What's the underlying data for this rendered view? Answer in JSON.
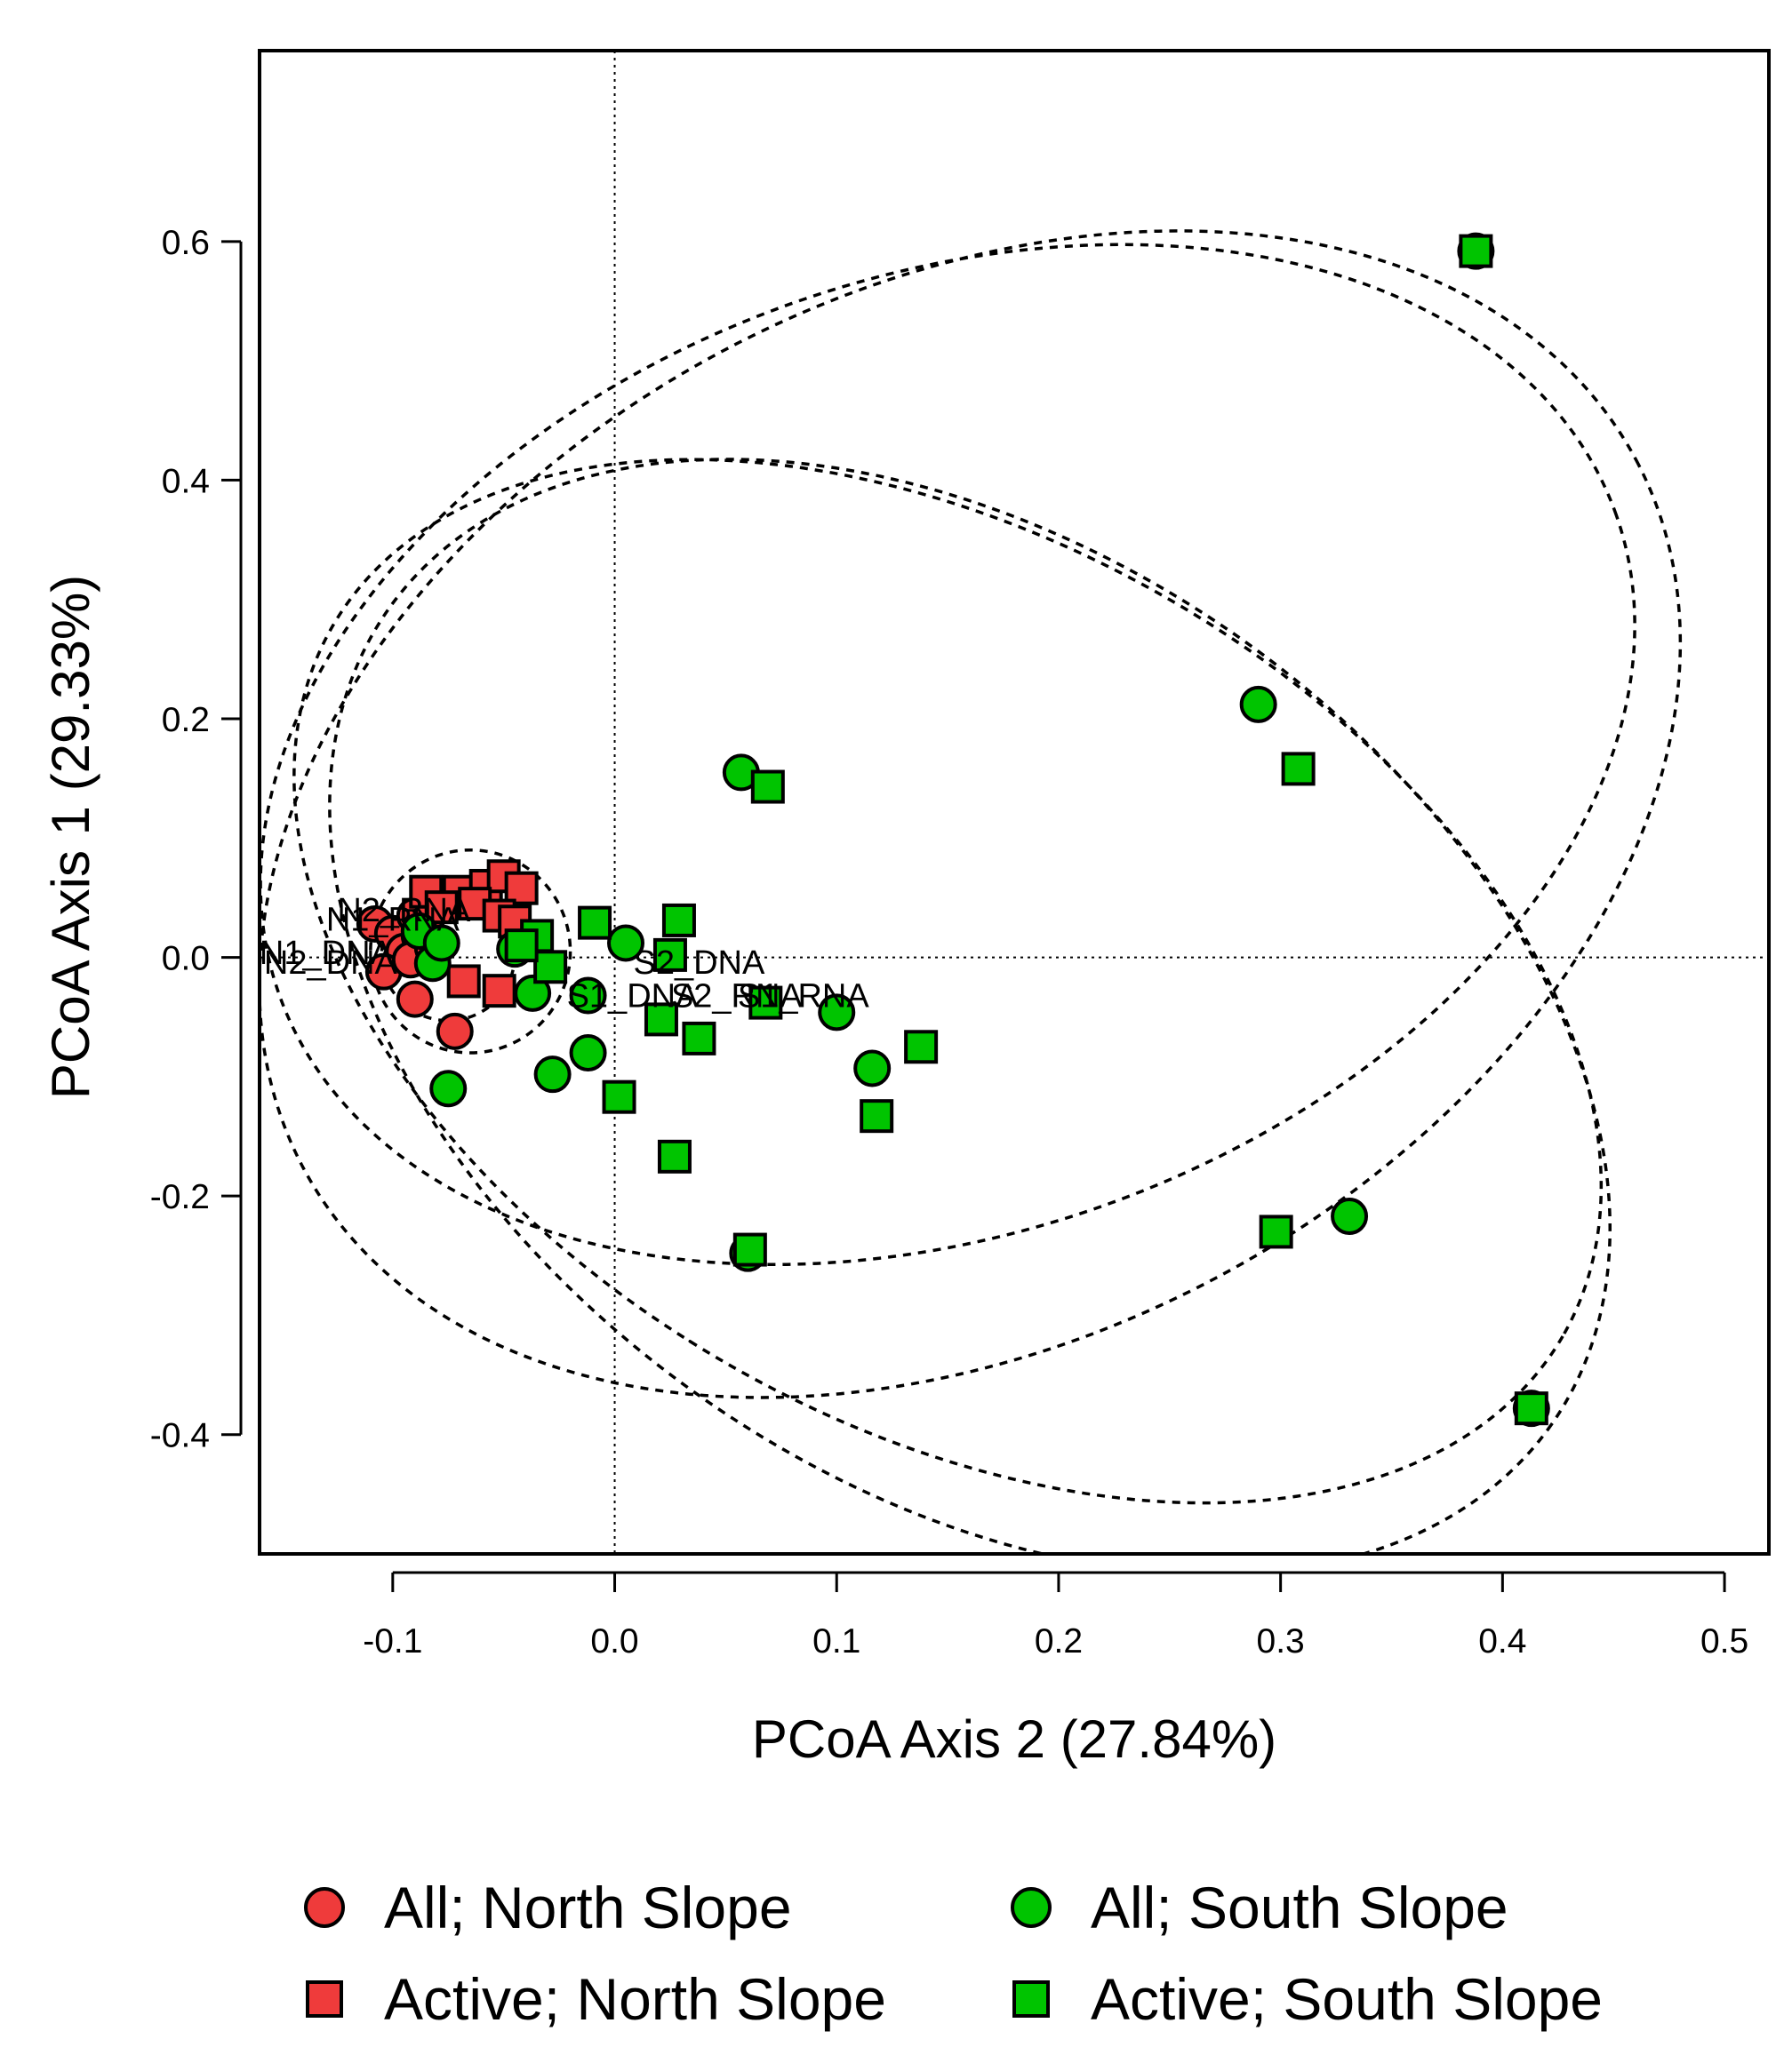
{
  "chart_data": {
    "type": "scatter",
    "xlabel": "PCoA Axis 2 (27.84%)",
    "ylabel": "PCoA Axis 1 (29.33%)",
    "xlim": [
      -0.16,
      0.52
    ],
    "ylim": [
      -0.5,
      0.76
    ],
    "xticks": [
      -0.1,
      0.0,
      0.1,
      0.2,
      0.3,
      0.4,
      0.5
    ],
    "xtick_labels": [
      "-0.1",
      "0.0",
      "0.1",
      "0.2",
      "0.3",
      "0.4",
      "0.5"
    ],
    "yticks": [
      -0.4,
      -0.2,
      0.0,
      0.2,
      0.4,
      0.6
    ],
    "ytick_labels": [
      "-0.4",
      "-0.2",
      "0.0",
      "0.2",
      "0.4",
      "0.6"
    ],
    "reference_lines": {
      "x": 0,
      "y": 0,
      "style": "dotted"
    },
    "grid": false,
    "legend_position": "bottom",
    "colors": {
      "north": "#ef3b3b",
      "south": "#00c400",
      "outline": "#000000"
    },
    "series": [
      {
        "name": "All; North Slope",
        "marker": "circle",
        "color": "#ef3b3b",
        "points": [
          {
            "x": -0.108,
            "y": 0.028
          },
          {
            "x": -0.1,
            "y": 0.02
          },
          {
            "x": -0.095,
            "y": 0.005
          },
          {
            "x": -0.088,
            "y": 0.018
          },
          {
            "x": -0.104,
            "y": -0.012
          },
          {
            "x": -0.092,
            "y": -0.002
          },
          {
            "x": -0.085,
            "y": 0.03
          },
          {
            "x": -0.09,
            "y": 0.035
          },
          {
            "x": -0.072,
            "y": -0.062
          },
          {
            "x": -0.09,
            "y": -0.035
          },
          {
            "x": -0.082,
            "y": 0.008
          }
        ]
      },
      {
        "name": "Active; North Slope",
        "marker": "square",
        "color": "#ef3b3b",
        "points": [
          {
            "x": -0.085,
            "y": 0.055
          },
          {
            "x": -0.07,
            "y": 0.055
          },
          {
            "x": -0.058,
            "y": 0.06
          },
          {
            "x": -0.05,
            "y": 0.068
          },
          {
            "x": -0.042,
            "y": 0.058
          },
          {
            "x": -0.063,
            "y": 0.045
          },
          {
            "x": -0.078,
            "y": 0.042
          },
          {
            "x": -0.052,
            "y": 0.035
          },
          {
            "x": -0.045,
            "y": 0.03
          },
          {
            "x": -0.068,
            "y": -0.02
          },
          {
            "x": -0.052,
            "y": -0.028
          }
        ]
      },
      {
        "name": "All; South Slope",
        "marker": "circle",
        "color": "#00c400",
        "points": [
          {
            "x": 0.388,
            "y": 0.592
          },
          {
            "x": 0.29,
            "y": 0.212
          },
          {
            "x": 0.057,
            "y": 0.155
          },
          {
            "x": 0.331,
            "y": -0.217
          },
          {
            "x": 0.06,
            "y": -0.248
          },
          {
            "x": 0.413,
            "y": -0.378
          },
          {
            "x": 0.005,
            "y": 0.012
          },
          {
            "x": -0.012,
            "y": -0.032
          },
          {
            "x": -0.037,
            "y": -0.03
          },
          {
            "x": -0.045,
            "y": 0.007
          },
          {
            "x": -0.012,
            "y": -0.08
          },
          {
            "x": -0.028,
            "y": -0.098
          },
          {
            "x": -0.075,
            "y": -0.11
          },
          {
            "x": 0.1,
            "y": -0.046
          },
          {
            "x": 0.116,
            "y": -0.093
          },
          {
            "x": -0.082,
            "y": -0.005
          },
          {
            "x": -0.088,
            "y": 0.022
          },
          {
            "x": -0.078,
            "y": 0.012
          }
        ]
      },
      {
        "name": "Active; South Slope",
        "marker": "square",
        "color": "#00c400",
        "points": [
          {
            "x": 0.388,
            "y": 0.592
          },
          {
            "x": 0.308,
            "y": 0.158
          },
          {
            "x": 0.069,
            "y": 0.143
          },
          {
            "x": 0.298,
            "y": -0.23
          },
          {
            "x": 0.061,
            "y": -0.245
          },
          {
            "x": 0.413,
            "y": -0.378
          },
          {
            "x": -0.009,
            "y": 0.029
          },
          {
            "x": 0.029,
            "y": 0.031
          },
          {
            "x": 0.025,
            "y": 0.002
          },
          {
            "x": 0.068,
            "y": -0.038
          },
          {
            "x": 0.021,
            "y": -0.052
          },
          {
            "x": 0.038,
            "y": -0.068
          },
          {
            "x": 0.138,
            "y": -0.075
          },
          {
            "x": 0.118,
            "y": -0.133
          },
          {
            "x": 0.002,
            "y": -0.117
          },
          {
            "x": 0.027,
            "y": -0.167
          },
          {
            "x": -0.029,
            "y": -0.008
          },
          {
            "x": -0.035,
            "y": 0.018
          },
          {
            "x": -0.042,
            "y": 0.01
          }
        ]
      }
    ],
    "point_labels": [
      {
        "text": "S2_DNA",
        "x": 0.038,
        "y": -0.004
      },
      {
        "text": "S1_DNA",
        "x": 0.008,
        "y": -0.032
      },
      {
        "text": "S2_RNA",
        "x": 0.055,
        "y": -0.032
      },
      {
        "text": "S1_RNA",
        "x": 0.085,
        "y": -0.032
      },
      {
        "text": "N1_DNA",
        "x": -0.13,
        "y": 0.004
      },
      {
        "text": "N2_DNA",
        "x": -0.128,
        "y": -0.004
      },
      {
        "text": "N1_RNA",
        "x": -0.1,
        "y": 0.032
      },
      {
        "text": "N2_RNA",
        "x": -0.095,
        "y": 0.04
      }
    ],
    "ellipses": [
      {
        "cx": -0.075,
        "cy": 0.002,
        "rx": 0.03,
        "ry": 0.055,
        "angle_deg": 0
      },
      {
        "cx": -0.065,
        "cy": 0.005,
        "rx": 0.045,
        "ry": 0.085,
        "angle_deg": 0
      },
      {
        "cx": 0.15,
        "cy": 0.17,
        "rx": 0.32,
        "ry": 0.4,
        "angle_deg": -20
      },
      {
        "cx": 0.16,
        "cy": 0.12,
        "rx": 0.34,
        "ry": 0.44,
        "angle_deg": -28
      },
      {
        "cx": 0.15,
        "cy": -0.02,
        "rx": 0.32,
        "ry": 0.37,
        "angle_deg": 30
      },
      {
        "cx": 0.16,
        "cy": -0.05,
        "rx": 0.32,
        "ry": 0.39,
        "angle_deg": 35
      }
    ]
  }
}
